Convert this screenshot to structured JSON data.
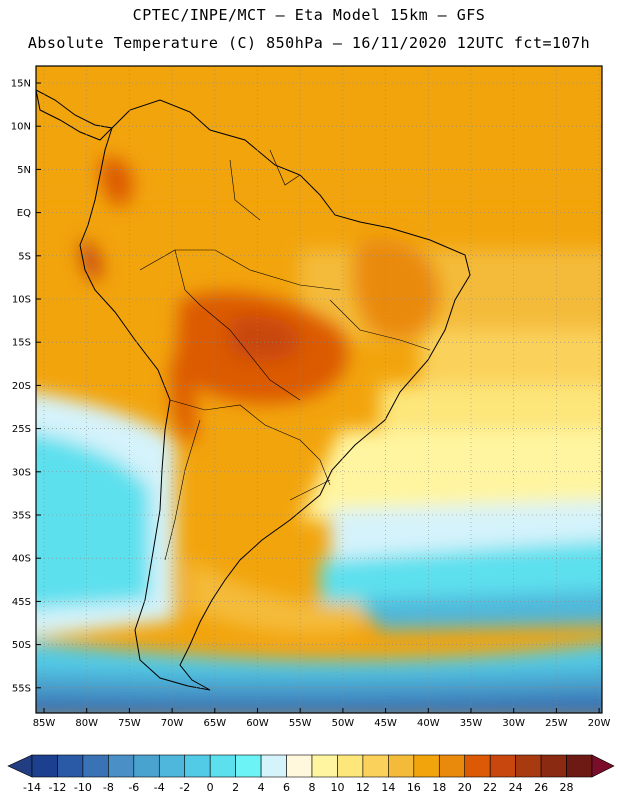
{
  "header": {
    "line1": "CPTEC/INPE/MCT –  Eta Model 15km – GFS",
    "line2": "Absolute Temperature (C) 850hPa – 16/11/2020 12UTC fct=107h"
  },
  "map": {
    "lat_ticks": [
      "15N",
      "10N",
      "5N",
      "EQ",
      "5S",
      "10S",
      "15S",
      "20S",
      "25S",
      "30S",
      "35S",
      "40S",
      "45S",
      "50S",
      "55S"
    ],
    "lon_ticks": [
      "85W",
      "80W",
      "75W",
      "70W",
      "65W",
      "60W",
      "55W",
      "50W",
      "45W",
      "40W",
      "35W",
      "30W",
      "25W",
      "20W"
    ]
  },
  "colorbar": {
    "labels": [
      "-14",
      "-12",
      "-10",
      "-8",
      "-6",
      "-4",
      "-2",
      "0",
      "2",
      "4",
      "6",
      "8",
      "10",
      "12",
      "14",
      "16",
      "18",
      "20",
      "22",
      "24",
      "26",
      "28"
    ],
    "colors": [
      "#1c3f8e",
      "#2a5aa6",
      "#3a73b5",
      "#4a8fc6",
      "#4aa3cf",
      "#4fb7db",
      "#52cbe6",
      "#5de0ee",
      "#6cf3f6",
      "#d5f3fb",
      "#fff8dc",
      "#fff5a0",
      "#fde67a",
      "#fad15a",
      "#f4bb3b",
      "#f2a40c",
      "#ea8a0c",
      "#dc5a06",
      "#c8470e",
      "#a83a0f",
      "#8a2a10",
      "#6e1a14"
    ],
    "low_color": "#233d82",
    "high_color": "#7a0e2a"
  }
}
